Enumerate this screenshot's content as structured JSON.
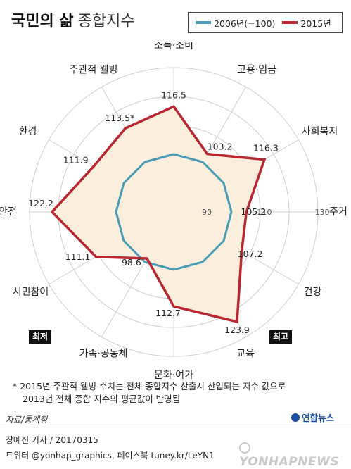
{
  "title": {
    "main": "국민의 삶",
    "sub": "종합지수"
  },
  "legend": [
    {
      "label": "2006년(=100)",
      "color": "#4a9bb5"
    },
    {
      "label": "2015년",
      "color": "#b8262f"
    }
  ],
  "chart_data": {
    "type": "radar",
    "axes": [
      "소득·소비",
      "고용·임금",
      "사회복지",
      "주거",
      "건강",
      "교육",
      "문화·여가",
      "가족·공동체",
      "시민참여",
      "안전",
      "환경",
      "주관적 웰빙"
    ],
    "range": [
      80,
      130
    ],
    "ring_labels": [
      "90",
      "110",
      "130"
    ],
    "series": [
      {
        "name": "2006년(=100)",
        "values": [
          100,
          100,
          100,
          100,
          100,
          100,
          100,
          100,
          100,
          100,
          100,
          100
        ]
      },
      {
        "name": "2015년",
        "values": [
          116.5,
          103.2,
          116.3,
          105.2,
          107.2,
          123.9,
          112.7,
          98.6,
          111.1,
          122.2,
          111.9,
          113.5
        ]
      }
    ],
    "value_labels": [
      "116.5",
      "103.2",
      "116.3",
      "105.2",
      "107.2",
      "123.9",
      "112.7",
      "98.6",
      "111.1",
      "122.2",
      "111.9",
      "113.5*"
    ]
  },
  "chips": {
    "lowest": "최저",
    "highest": "최고"
  },
  "footnote": {
    "line1": "* 2015년 주관적 웰빙 수치는 전체 종합지수 산출시 산입되는 지수 값으로",
    "line2": "2013년 전체 종합 지수의 평균값이 반영됨"
  },
  "source": "자료/통계청",
  "logo": "연합뉴스",
  "byline": "장예진 기자 / 20170315",
  "social": "트위터 @yonhap_graphics, 페이스북 tuney.kr/LeYN1",
  "watermark": "YONHAPNEWS",
  "colors": {
    "fill": "#fbeedd",
    "grid": "#cfcfcf"
  }
}
